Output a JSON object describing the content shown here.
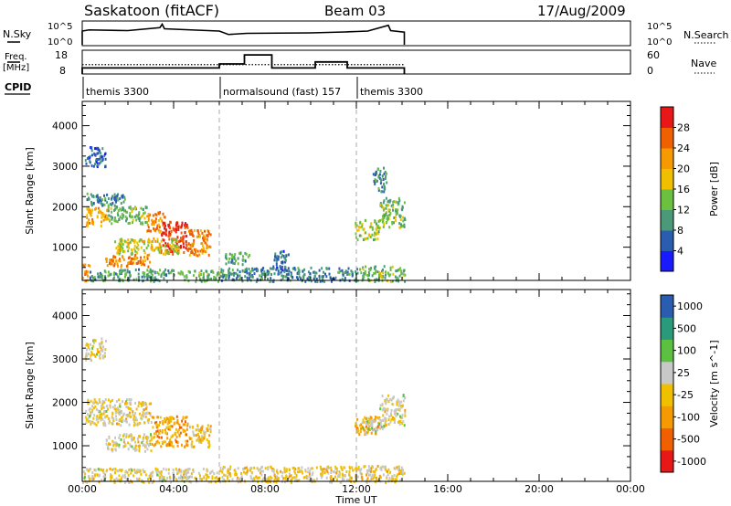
{
  "header": {
    "title": "Saskatoon (fitACF)",
    "beam": "Beam 03",
    "date": "17/Aug/2009"
  },
  "top_panels": {
    "nsky_label": "N.Sky",
    "nsky_ticks": [
      "10^5",
      "10^0"
    ],
    "nsearch_label": "N.Search",
    "nsearch_ticks": [
      "10^5",
      "10^0"
    ],
    "freq_label": "Freq.",
    "freq_unit": "[MHz]",
    "freq_ticks": [
      "18",
      "8"
    ],
    "nave_label": "Nave",
    "nave_ticks": [
      "60",
      "0"
    ],
    "cpid_label": "CPID",
    "cpid_segments": [
      {
        "label": "themis 3300",
        "start_h": 0
      },
      {
        "label": "normalsound (fast) 157",
        "start_h": 6
      },
      {
        "label": "themis 3300",
        "start_h": 12
      }
    ]
  },
  "chart_data": [
    {
      "type": "heatmap",
      "title": "",
      "xlabel": "Time UT",
      "ylabel": "Slant Range [km]",
      "x_ticks": [
        "00:00",
        "04:00",
        "08:00",
        "12:00",
        "16:00",
        "20:00",
        "00:00"
      ],
      "xlim_hours": [
        0,
        24
      ],
      "y_ticks": [
        "1000",
        "2000",
        "3000",
        "4000"
      ],
      "ylim": [
        180,
        4600
      ],
      "data_end_hour": 14.1,
      "colorbar": {
        "label": "Power [dB]",
        "ticks": [
          "4",
          "8",
          "12",
          "16",
          "20",
          "24",
          "28"
        ],
        "range": [
          0,
          30
        ]
      },
      "colors": [
        "#1a1aff",
        "#2a5cb0",
        "#4a9a7a",
        "#6cc040",
        "#f0c000",
        "#f59a00",
        "#f06000",
        "#e81818"
      ],
      "regions": [
        {
          "t": [
            0.0,
            0.3
          ],
          "r": [
            180,
            600
          ],
          "v": 20
        },
        {
          "t": [
            0.3,
            4.0
          ],
          "r": [
            180,
            480
          ],
          "v": 10
        },
        {
          "t": [
            4.0,
            6.0
          ],
          "r": [
            180,
            450
          ],
          "v": 12
        },
        {
          "t": [
            6.0,
            12.0
          ],
          "r": [
            180,
            520
          ],
          "v": 8
        },
        {
          "t": [
            12.0,
            14.1
          ],
          "r": [
            180,
            560
          ],
          "v": 12
        },
        {
          "t": [
            0.1,
            1.1
          ],
          "r": [
            1550,
            2000
          ],
          "v": 20
        },
        {
          "t": [
            1.1,
            2.8
          ],
          "r": [
            1600,
            2050
          ],
          "v": 12
        },
        {
          "t": [
            2.8,
            3.6
          ],
          "r": [
            1400,
            1900
          ],
          "v": 22
        },
        {
          "t": [
            3.4,
            4.6
          ],
          "r": [
            850,
            1650
          ],
          "v": 27
        },
        {
          "t": [
            4.6,
            5.6
          ],
          "r": [
            800,
            1450
          ],
          "v": 22
        },
        {
          "t": [
            1.4,
            4.3
          ],
          "r": [
            850,
            1250
          ],
          "v": 16
        },
        {
          "t": [
            1.0,
            3.0
          ],
          "r": [
            550,
            850
          ],
          "v": 22
        },
        {
          "t": [
            0.1,
            1.9
          ],
          "r": [
            2050,
            2350
          ],
          "v": 8
        },
        {
          "t": [
            0.1,
            1.0
          ],
          "r": [
            3000,
            3500
          ],
          "v": 6
        },
        {
          "t": [
            11.9,
            13.0
          ],
          "r": [
            1200,
            1700
          ],
          "v": 14
        },
        {
          "t": [
            13.0,
            14.1
          ],
          "r": [
            1500,
            2250
          ],
          "v": 12
        },
        {
          "t": [
            12.7,
            13.3
          ],
          "r": [
            2400,
            3000
          ],
          "v": 8
        },
        {
          "t": [
            8.3,
            9.0
          ],
          "r": [
            450,
            950
          ],
          "v": 6
        },
        {
          "t": [
            6.2,
            7.3
          ],
          "r": [
            600,
            900
          ],
          "v": 10
        }
      ]
    },
    {
      "type": "heatmap",
      "title": "",
      "xlabel": "Time UT",
      "ylabel": "Slant Range [km]",
      "x_ticks": [
        "00:00",
        "04:00",
        "08:00",
        "12:00",
        "16:00",
        "20:00",
        "00:00"
      ],
      "xlim_hours": [
        0,
        24
      ],
      "y_ticks": [
        "1000",
        "2000",
        "3000",
        "4000"
      ],
      "ylim": [
        180,
        4600
      ],
      "data_end_hour": 14.1,
      "colorbar": {
        "label": "Velocity [m s^-1]",
        "ticks": [
          "1000",
          "500",
          "100",
          "25",
          "-25",
          "-100",
          "-500",
          "-1000"
        ],
        "range": [
          -1200,
          1200
        ]
      },
      "colors": [
        "#e81818",
        "#f06000",
        "#f59a00",
        "#f0c000",
        "#c8c8c8",
        "#5cc040",
        "#2a9a7a",
        "#2a5cb0"
      ],
      "regions": [
        {
          "t": [
            0.0,
            6.0
          ],
          "r": [
            180,
            500
          ],
          "v": 0
        },
        {
          "t": [
            6.0,
            12.0
          ],
          "r": [
            180,
            550
          ],
          "v": -60
        },
        {
          "t": [
            12.0,
            14.1
          ],
          "r": [
            180,
            560
          ],
          "v": -60
        },
        {
          "t": [
            0.1,
            3.0
          ],
          "r": [
            1500,
            2100
          ],
          "v": 0
        },
        {
          "t": [
            3.0,
            4.6
          ],
          "r": [
            1000,
            1700
          ],
          "v": -400
        },
        {
          "t": [
            4.6,
            5.6
          ],
          "r": [
            1000,
            1500
          ],
          "v": -200
        },
        {
          "t": [
            1.0,
            3.0
          ],
          "r": [
            900,
            1300
          ],
          "v": 0
        },
        {
          "t": [
            0.1,
            1.0
          ],
          "r": [
            3000,
            3500
          ],
          "v": 0
        },
        {
          "t": [
            11.9,
            13.0
          ],
          "r": [
            1250,
            1700
          ],
          "v": -300
        },
        {
          "t": [
            13.0,
            14.1
          ],
          "r": [
            1500,
            2200
          ],
          "v": 0
        },
        {
          "t": [
            12.2,
            13.2
          ],
          "r": [
            1350,
            1650
          ],
          "v": 150
        }
      ]
    }
  ],
  "line_series": {
    "nsky": [
      [
        0,
        0.6
      ],
      [
        0.3,
        0.65
      ],
      [
        2,
        0.62
      ],
      [
        3.4,
        0.75
      ],
      [
        3.5,
        0.9
      ],
      [
        3.6,
        0.7
      ],
      [
        5,
        0.64
      ],
      [
        6,
        0.6
      ],
      [
        6.4,
        0.45
      ],
      [
        7.2,
        0.5
      ],
      [
        10,
        0.52
      ],
      [
        11.5,
        0.56
      ],
      [
        12,
        0.58
      ],
      [
        12.5,
        0.6
      ],
      [
        13.4,
        0.85
      ],
      [
        13.5,
        0.62
      ],
      [
        14.1,
        0.55
      ]
    ],
    "freq": [
      [
        0,
        11
      ],
      [
        6,
        11
      ],
      [
        6,
        13
      ],
      [
        7.1,
        13
      ],
      [
        7.1,
        17.5
      ],
      [
        8.3,
        17.5
      ],
      [
        8.3,
        11
      ],
      [
        10.2,
        11
      ],
      [
        10.2,
        14
      ],
      [
        11.6,
        14
      ],
      [
        11.6,
        11
      ],
      [
        14.1,
        11
      ]
    ],
    "nave": [
      [
        0,
        28
      ],
      [
        14.1,
        28
      ]
    ]
  }
}
